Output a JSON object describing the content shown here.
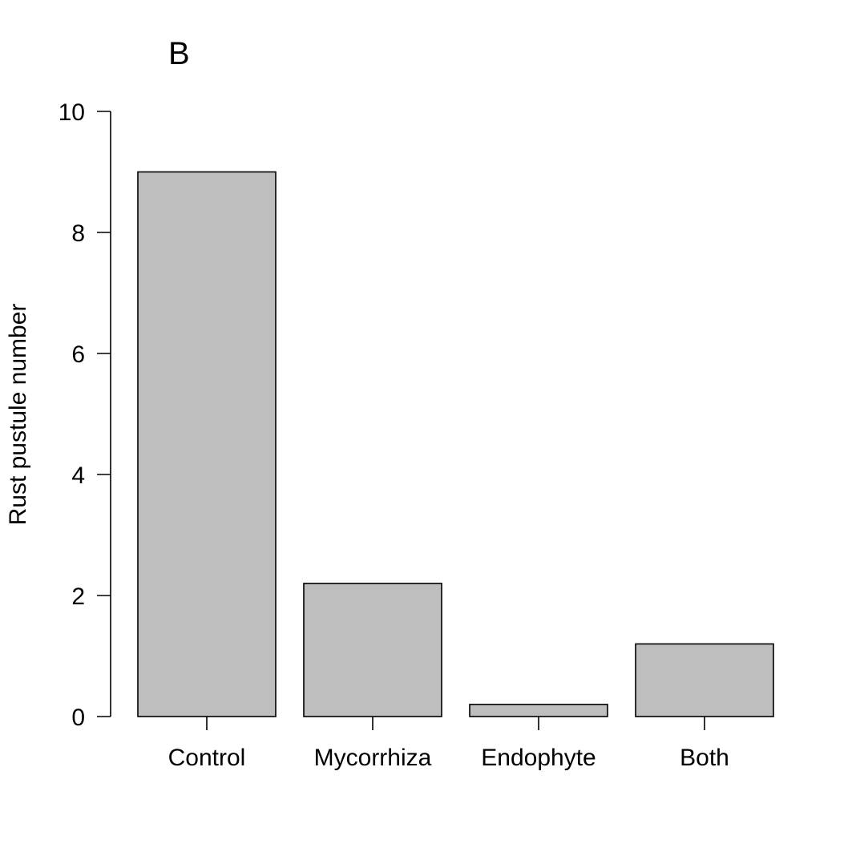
{
  "panel_label": "B",
  "colors": {
    "bar_fill": "#bebebe",
    "bar_stroke": "#000000",
    "background": "#ffffff"
  },
  "chart_data": {
    "type": "bar",
    "title": "",
    "xlabel": "",
    "ylabel": "Rust pustule number",
    "categories": [
      "Control",
      "Mycorrhiza",
      "Endophyte",
      "Both"
    ],
    "values": [
      9.0,
      2.2,
      0.2,
      1.2
    ],
    "ylim": [
      0,
      10
    ],
    "yticks": [
      0,
      2,
      4,
      6,
      8,
      10
    ],
    "grid": false,
    "legend": "none"
  }
}
